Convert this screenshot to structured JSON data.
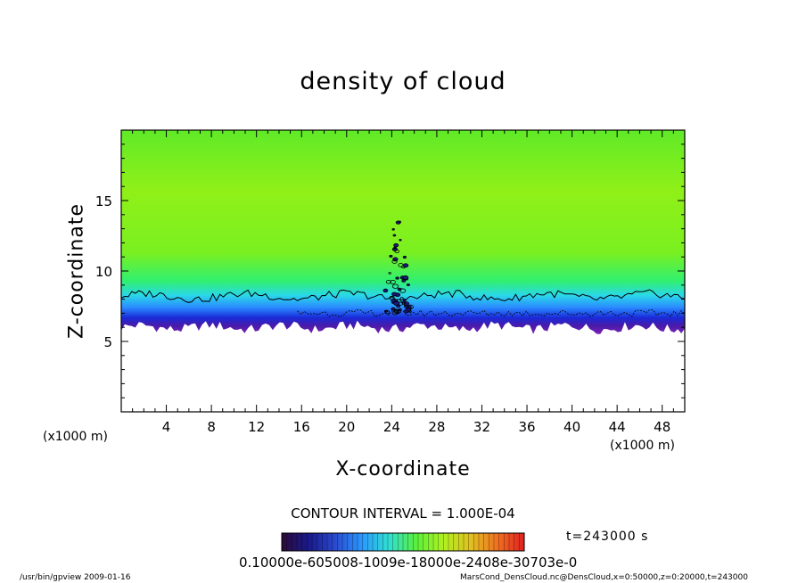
{
  "app": {
    "footer_left": "/usr/bin/gpview  2009-01-16",
    "footer_right": "MarsCond_DensCloud.nc@DensCloud,x=0:50000,z=0:20000,t=243000"
  },
  "chart_data": {
    "type": "heatmap",
    "title": "density of cloud",
    "xlabel": "X-coordinate",
    "ylabel": "Z-coordinate",
    "x_unit_left": "(x1000 m)",
    "x_unit_right": "(x1000 m)",
    "xlim": [
      0,
      50
    ],
    "ylim": [
      0,
      20
    ],
    "x_ticks": [
      4,
      8,
      12,
      16,
      20,
      24,
      28,
      32,
      36,
      40,
      44,
      48
    ],
    "y_ticks": [
      5,
      10,
      15
    ],
    "contour_interval": "CONTOUR INTERVAL = 1.000E-04",
    "time_label": "t=243000 s",
    "colorbar_labels": "0.10000e-605008-1009e-18000e-2408e-30703e-03",
    "colorbar_colors": [
      "#2a0a3a",
      "#1a1a8a",
      "#2a4ad0",
      "#2a9aff",
      "#30e0d0",
      "#5af03a",
      "#b0f020",
      "#e0c020",
      "#f07020",
      "#e02020"
    ],
    "field": {
      "cloud_base_z": 6,
      "cloud_top_z": 20,
      "contour_level_z": 8.2,
      "convective_plume": {
        "x_center": 24.5,
        "z_range": [
          7,
          13.5
        ]
      }
    },
    "grid": false
  }
}
